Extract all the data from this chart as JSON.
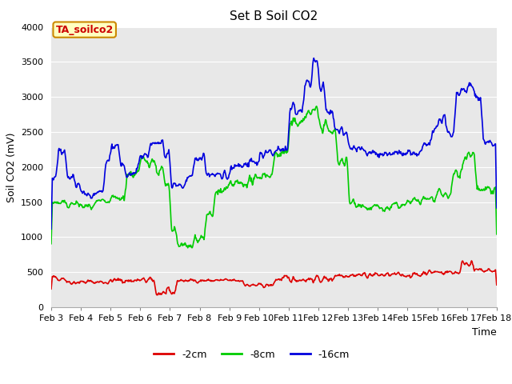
{
  "title": "Set B Soil CO2",
  "xlabel": "Time",
  "ylabel": "Soil CO2 (mV)",
  "ylim": [
    0,
    4000
  ],
  "xlim": [
    3,
    18
  ],
  "annotation_label": "TA_soilco2",
  "annotation_bg": "#FFFFC0",
  "annotation_border": "#CC8800",
  "series": {
    "red": {
      "label": "-2cm",
      "color": "#DD0000",
      "lw": 1.2
    },
    "green": {
      "label": "-8cm",
      "color": "#00CC00",
      "lw": 1.2
    },
    "blue": {
      "label": "-16cm",
      "color": "#0000DD",
      "lw": 1.2
    }
  },
  "xtick_labels": [
    "Feb 3",
    "Feb 4",
    "Feb 5",
    "Feb 6",
    "Feb 7",
    "Feb 8",
    "Feb 9",
    "Feb 10",
    "Feb 11",
    "Feb 12",
    "Feb 13",
    "Feb 14",
    "Feb 15",
    "Feb 16",
    "Feb 17",
    "Feb 18"
  ],
  "xtick_positions": [
    3,
    4,
    5,
    6,
    7,
    8,
    9,
    10,
    11,
    12,
    13,
    14,
    15,
    16,
    17,
    18
  ],
  "fig_bg": "#FFFFFF",
  "plot_bg": "#E8E8E8",
  "title_fontsize": 11,
  "label_fontsize": 9,
  "tick_fontsize": 8,
  "legend_fontsize": 9
}
